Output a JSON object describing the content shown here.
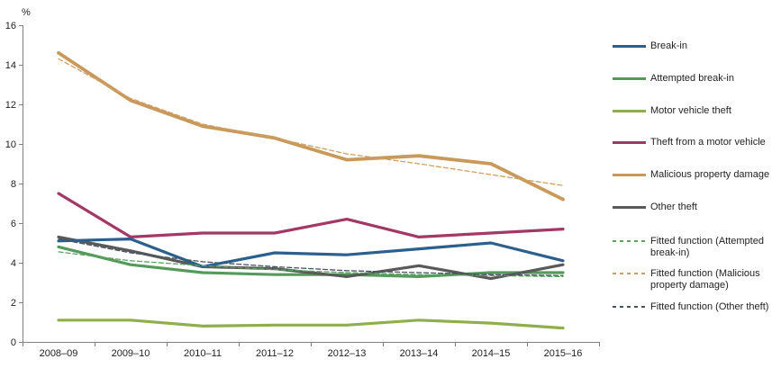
{
  "chart_data": {
    "type": "line",
    "title": "",
    "ylabel": "%",
    "xlabel": "",
    "ylim": [
      0,
      16
    ],
    "yticks": [
      0,
      2,
      4,
      6,
      8,
      10,
      12,
      14,
      16
    ],
    "grid": false,
    "legend_position": "right",
    "categories": [
      "2008–09",
      "2009–10",
      "2010–11",
      "2011–12",
      "2012–13",
      "2013–14",
      "2014–15",
      "2015–16"
    ],
    "series": [
      {
        "name": "Break-in",
        "legend_label": "Break-in",
        "color": "#2B5F8E",
        "style": "solid",
        "values": [
          5.1,
          5.2,
          3.8,
          4.5,
          4.4,
          4.7,
          5.0,
          4.1
        ]
      },
      {
        "name": "Attempted break-in",
        "legend_label": "Attempted break-in",
        "color": "#559A5B",
        "style": "solid",
        "values": [
          4.8,
          3.9,
          3.5,
          3.4,
          3.4,
          3.3,
          3.5,
          3.5
        ]
      },
      {
        "name": "Motor vehicle theft",
        "legend_label": "Motor vehicle theft",
        "color": "#8FAE4D",
        "style": "solid",
        "values": [
          1.1,
          1.1,
          0.8,
          0.85,
          0.85,
          1.1,
          0.95,
          0.7
        ]
      },
      {
        "name": "Theft from a motor vehicle",
        "legend_label": "Theft from a motor vehicle",
        "color": "#A13866",
        "style": "solid",
        "values": [
          7.5,
          5.3,
          5.5,
          5.5,
          6.2,
          5.3,
          5.5,
          5.7
        ]
      },
      {
        "name": "Malicious property damage",
        "legend_label": "Malicious property damage",
        "color": "#C9995C",
        "style": "solid",
        "values": [
          14.6,
          12.2,
          10.9,
          10.3,
          9.2,
          9.4,
          9.0,
          7.2
        ]
      },
      {
        "name": "Other theft",
        "legend_label": "Other theft",
        "color": "#595959",
        "style": "solid",
        "values": [
          5.3,
          4.6,
          3.8,
          3.7,
          3.3,
          3.85,
          3.2,
          3.9
        ]
      },
      {
        "name": "Fitted function (Attempted break-in)",
        "legend_label": "Fitted function (Attempted\nbreak-in)",
        "color": "#5AA361",
        "style": "dashed",
        "values": [
          4.55,
          4.1,
          3.85,
          3.65,
          3.5,
          3.4,
          3.35,
          3.3
        ]
      },
      {
        "name": "Fitted function (Malicious property damage)",
        "legend_label": "Fitted function (Malicious\nproperty damage)",
        "color": "#CFA066",
        "style": "dashed",
        "values": [
          14.3,
          12.3,
          11.0,
          10.3,
          9.5,
          9.0,
          8.45,
          7.9
        ]
      },
      {
        "name": "Fitted function (Other theft)",
        "legend_label": "Fitted function (Other theft)",
        "color": "#485264",
        "style": "dashed",
        "values": [
          5.2,
          4.5,
          4.05,
          3.8,
          3.6,
          3.5,
          3.4,
          3.35
        ]
      }
    ]
  },
  "colors": {
    "axis": "#808080",
    "text": "#1f1f1f",
    "background": "#ffffff"
  }
}
